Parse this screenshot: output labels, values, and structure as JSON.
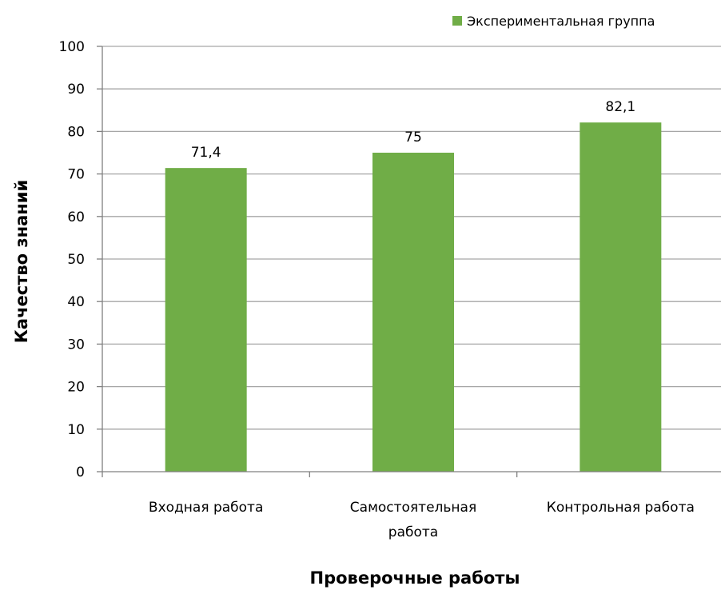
{
  "chart_data": {
    "type": "bar",
    "categories": [
      [
        "Входная работа"
      ],
      [
        "Самостоятельная",
        "работа"
      ],
      [
        "Контрольная работа"
      ]
    ],
    "series": [
      {
        "name": "Экспериментальная группа",
        "values": [
          71.4,
          75,
          82.1
        ],
        "color": "#70AD47"
      }
    ],
    "data_labels": [
      "71,4",
      "75",
      "82,1"
    ],
    "xlabel": "Проверочные работы",
    "ylabel": "Качество знаний",
    "ylim": [
      0,
      100
    ],
    "yticks": [
      0,
      10,
      20,
      30,
      40,
      50,
      60,
      70,
      80,
      90,
      100
    ],
    "grid": true,
    "legend": "top-right",
    "colors": {
      "bar": "#70AD47",
      "grid": "#A6A6A6",
      "axis": "#808080"
    }
  }
}
